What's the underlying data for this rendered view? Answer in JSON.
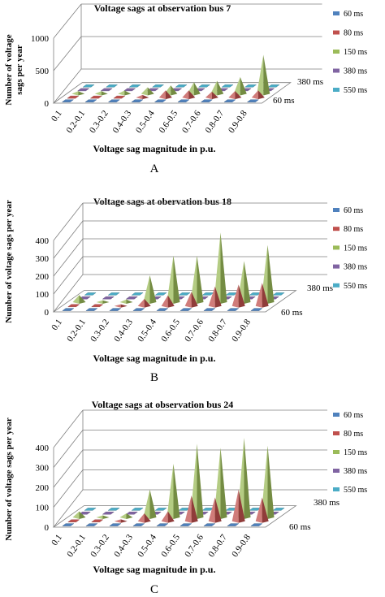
{
  "figure": {
    "panels": [
      {
        "panel_label": "A",
        "title": "Voltage sags at observation bus 7",
        "ylabel": "Number of voltage sags per year",
        "xlabel": "Voltage sag magnitude in p.u.",
        "depth_labels": [
          "60 ms",
          "380 ms"
        ]
      },
      {
        "panel_label": "B",
        "title": "Voltage sags at obervation bus 18",
        "ylabel": "Number of voltage sags per year",
        "xlabel": "Voltage sag magnitude in p.u.",
        "depth_labels": [
          "60 ms",
          "380 ms"
        ]
      },
      {
        "panel_label": "C",
        "title": "Voltage sags at observation bus 24",
        "ylabel": "Number of voltage sags per year",
        "xlabel": "Voltage sag magnitude in p.u.",
        "depth_labels": [
          "60 ms",
          "380 ms"
        ]
      }
    ]
  },
  "colors": {
    "60 ms": "#4f81bd",
    "80 ms": "#c0504d",
    "150 ms": "#9bbb59",
    "380 ms": "#8064a2",
    "550 ms": "#4bacc6",
    "grid": "#7f7f7f"
  },
  "chart_data": [
    {
      "type": "3d-cone",
      "title": "Voltage sags at observation bus 7",
      "xlabel": "Voltage sag magnitude in p.u.",
      "ylabel": "Number of voltage sags per year",
      "categories": [
        "0.1",
        "0.2-0.1",
        "0.3-0.2",
        "0.4-0.3",
        "0.5-0.4",
        "0.6-0.5",
        "0.7-0.6",
        "0.8-0.7",
        "0.9-0.8"
      ],
      "ylim": [
        0,
        1000
      ],
      "yticks": [
        0,
        500,
        1000
      ],
      "grid": true,
      "legend_position": "right",
      "series": [
        {
          "name": "60 ms",
          "values": [
            0,
            0,
            0,
            0,
            0,
            0,
            0,
            0,
            0
          ]
        },
        {
          "name": "80 ms",
          "values": [
            0,
            10,
            20,
            40,
            110,
            110,
            90,
            100,
            110
          ]
        },
        {
          "name": "150 ms",
          "values": [
            40,
            40,
            50,
            100,
            130,
            180,
            200,
            260,
            600
          ]
        },
        {
          "name": "380 ms",
          "values": [
            0,
            0,
            0,
            0,
            0,
            0,
            0,
            0,
            0
          ]
        },
        {
          "name": "550 ms",
          "values": [
            0,
            0,
            0,
            0,
            0,
            0,
            0,
            0,
            0
          ]
        }
      ]
    },
    {
      "type": "3d-cone",
      "title": "Voltage sags at obervation bus 18",
      "xlabel": "Voltage sag magnitude in p.u.",
      "ylabel": "Number of voltage sags per year",
      "categories": [
        "0.1",
        "0.2-0.1",
        "0.3-0.2",
        "0.4-0.3",
        "0.5-0.4",
        "0.6-0.5",
        "0.7-0.6",
        "0.8-0.7",
        "0.9-0.8"
      ],
      "ylim": [
        0,
        400
      ],
      "yticks": [
        0,
        100,
        200,
        300,
        400
      ],
      "grid": true,
      "legend_position": "right",
      "series": [
        {
          "name": "60 ms",
          "values": [
            0,
            0,
            0,
            0,
            0,
            0,
            0,
            0,
            0
          ]
        },
        {
          "name": "80 ms",
          "values": [
            5,
            5,
            10,
            40,
            60,
            80,
            110,
            120,
            130
          ]
        },
        {
          "name": "150 ms",
          "values": [
            40,
            10,
            15,
            150,
            260,
            260,
            390,
            230,
            320
          ]
        },
        {
          "name": "380 ms",
          "values": [
            0,
            0,
            0,
            0,
            0,
            0,
            0,
            0,
            0
          ]
        },
        {
          "name": "550 ms",
          "values": [
            0,
            0,
            0,
            0,
            0,
            0,
            0,
            0,
            0
          ]
        }
      ]
    },
    {
      "type": "3d-cone",
      "title": "Voltage sags at observation bus 24",
      "xlabel": "Voltage sag magnitude in p.u.",
      "ylabel": "Number of voltage sags per year",
      "categories": [
        "0.1",
        "0.2-0.1",
        "0.3-0.2",
        "0.4-0.3",
        "0.5-0.4",
        "0.6-0.5",
        "0.7-0.6",
        "0.8-0.7",
        "0.9-0.8"
      ],
      "ylim": [
        0,
        400
      ],
      "yticks": [
        0,
        100,
        200,
        300,
        400
      ],
      "grid": true,
      "legend_position": "right",
      "series": [
        {
          "name": "60 ms",
          "values": [
            0,
            0,
            0,
            0,
            0,
            0,
            0,
            0,
            0
          ]
        },
        {
          "name": "80 ms",
          "values": [
            5,
            5,
            10,
            40,
            50,
            130,
            120,
            160,
            120
          ]
        },
        {
          "name": "150 ms",
          "values": [
            30,
            10,
            20,
            140,
            270,
            370,
            350,
            400,
            360
          ]
        },
        {
          "name": "380 ms",
          "values": [
            0,
            0,
            0,
            0,
            0,
            0,
            0,
            0,
            0
          ]
        },
        {
          "name": "550 ms",
          "values": [
            0,
            0,
            0,
            0,
            0,
            0,
            0,
            0,
            0
          ]
        }
      ]
    }
  ]
}
